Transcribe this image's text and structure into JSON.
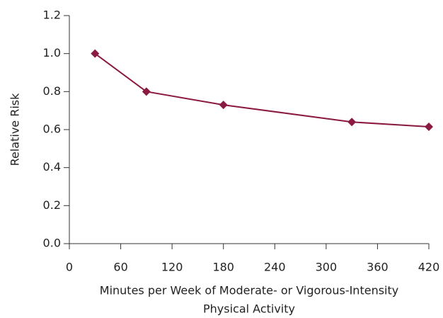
{
  "chart_data": {
    "type": "line",
    "y_label": "Relative Risk",
    "x_label": [
      "Minutes per Week of Moderate- or Vigorous-Intensity",
      "Physical Activity"
    ],
    "x": [
      30,
      90,
      180,
      330,
      420
    ],
    "series": [
      {
        "name": null,
        "color": "#8b1a42",
        "values": [
          1.0,
          0.8,
          0.73,
          0.64,
          0.615
        ]
      }
    ],
    "xlim": [
      0,
      420
    ],
    "xticks": [
      0,
      60,
      120,
      180,
      240,
      300,
      360,
      420
    ],
    "ylim": [
      0,
      1.2
    ],
    "yticks": [
      {
        "value": 0,
        "label": "0.0"
      },
      0.2,
      0.4,
      0.6,
      0.8,
      {
        "value": 1,
        "label": "1.0"
      },
      1.2
    ],
    "grid": false,
    "marker": "diamond"
  }
}
